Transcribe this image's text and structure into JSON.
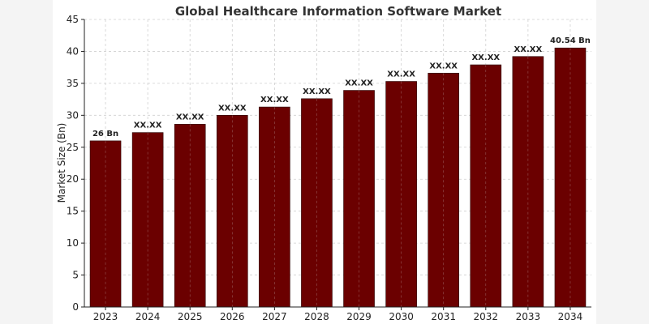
{
  "chart_data": {
    "type": "bar",
    "title": "Global Healthcare Information Software Market",
    "xlabel": "",
    "ylabel": "Market Size (Bn)",
    "ylim": [
      0,
      45
    ],
    "yticks": [
      0,
      5,
      10,
      15,
      20,
      25,
      30,
      35,
      40,
      45
    ],
    "grid": true,
    "bar_color": "#6b0000",
    "categories": [
      "2023",
      "2024",
      "2025",
      "2026",
      "2027",
      "2028",
      "2029",
      "2030",
      "2031",
      "2032",
      "2033",
      "2034"
    ],
    "values": [
      26,
      27.3,
      28.6,
      30.0,
      31.3,
      32.6,
      33.9,
      35.3,
      36.6,
      37.9,
      39.2,
      40.54
    ],
    "data_labels": [
      "26 Bn",
      "XX.XX",
      "XX.XX",
      "XX.XX",
      "XX.XX",
      "XX.XX",
      "XX.XX",
      "XX.XX",
      "XX.XX",
      "XX.XX",
      "XX.XX",
      "40.54 Bn"
    ]
  }
}
